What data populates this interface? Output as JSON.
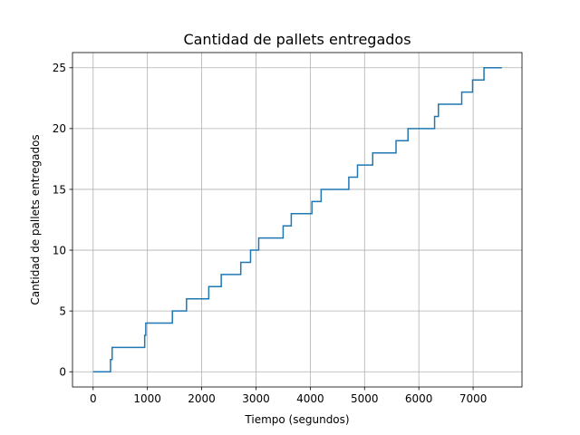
{
  "chart_data": {
    "type": "line",
    "title": "Cantidad de pallets entregados",
    "xlabel": "Tiempo (segundos)",
    "ylabel": "Cantidad de pallets entregados",
    "xlim": [
      -380,
      7900
    ],
    "ylim": [
      -1.25,
      26.25
    ],
    "xticks": [
      0,
      1000,
      2000,
      3000,
      4000,
      5000,
      6000,
      7000
    ],
    "xtick_labels": [
      "0",
      "1000",
      "2000",
      "3000",
      "4000",
      "5000",
      "6000",
      "7000"
    ],
    "yticks": [
      0,
      5,
      10,
      15,
      20,
      25
    ],
    "ytick_labels": [
      "0",
      "5",
      "10",
      "15",
      "20",
      "25"
    ],
    "grid": true,
    "step": "post",
    "series": [
      {
        "color": "#1f77b4",
        "x": [
          0,
          320,
          350,
          950,
          970,
          1460,
          1720,
          2130,
          2360,
          2720,
          2900,
          3050,
          3500,
          3650,
          4030,
          4200,
          4710,
          4870,
          5150,
          5580,
          5800,
          6290,
          6360,
          6790,
          6990,
          7200,
          7530
        ],
        "y": [
          0,
          1,
          2,
          3,
          4,
          5,
          6,
          7,
          8,
          9,
          10,
          11,
          12,
          13,
          14,
          15,
          16,
          17,
          18,
          19,
          20,
          21,
          22,
          23,
          24,
          25,
          25
        ]
      }
    ]
  }
}
